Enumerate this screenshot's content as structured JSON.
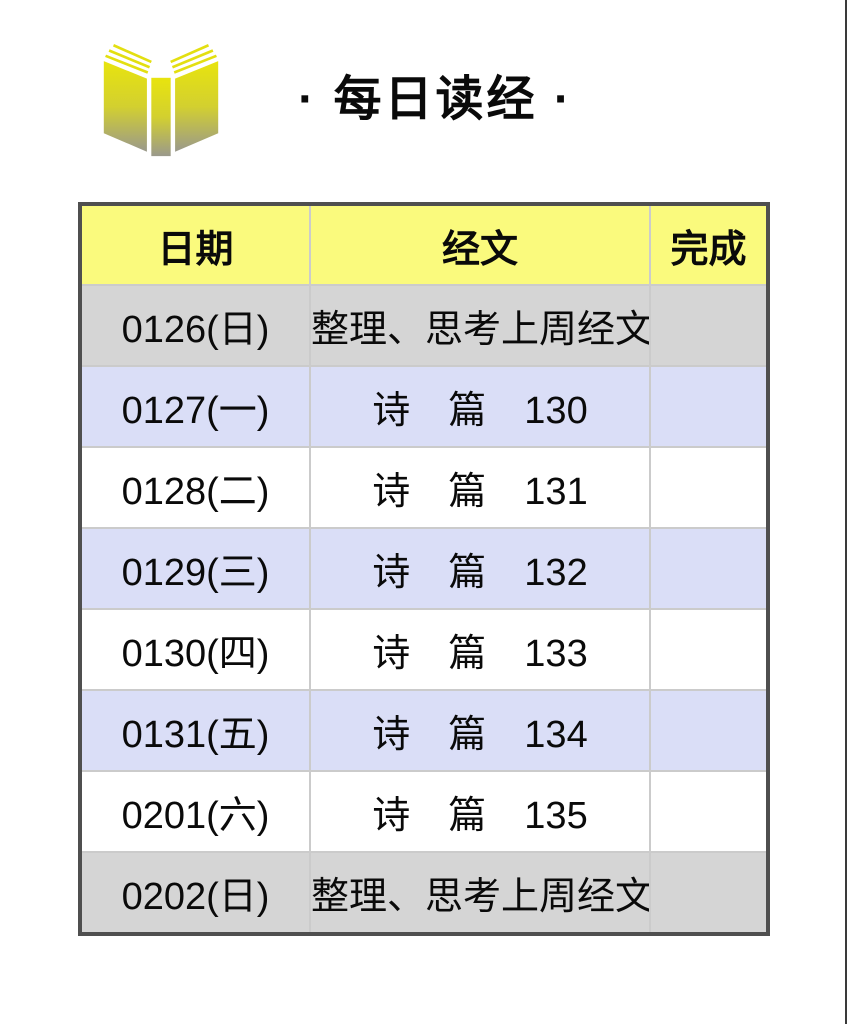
{
  "page": {
    "title": "· 每日读经 ·",
    "icon": "open-book-icon"
  },
  "colors": {
    "header_bg": "#fafa7d",
    "gray_row_bg": "#d5d5d5",
    "lavender_row_bg": "#dadef7",
    "white_row_bg": "#ffffff",
    "table_outer_border": "#4f4f4f",
    "cell_divider": "#cbcbcb",
    "book_yellow_top": "#e8e40e",
    "book_gray_bottom": "#9a998c",
    "text": "#0a0a0a"
  },
  "table": {
    "columns": [
      {
        "key": "date",
        "label": "日期"
      },
      {
        "key": "scripture",
        "label": "经文"
      },
      {
        "key": "done",
        "label": "完成"
      }
    ],
    "rows": [
      {
        "date": "0126(日)",
        "scripture": "整理、思考上周经文",
        "done": "",
        "style": "gray"
      },
      {
        "date": "0127(一)",
        "scripture": "诗　篇　130",
        "done": "",
        "style": "lavender"
      },
      {
        "date": "0128(二)",
        "scripture": "诗　篇　131",
        "done": "",
        "style": "white"
      },
      {
        "date": "0129(三)",
        "scripture": "诗　篇　132",
        "done": "",
        "style": "lavender"
      },
      {
        "date": "0130(四)",
        "scripture": "诗　篇　133",
        "done": "",
        "style": "white"
      },
      {
        "date": "0131(五)",
        "scripture": "诗　篇　134",
        "done": "",
        "style": "lavender"
      },
      {
        "date": "0201(六)",
        "scripture": "诗　篇　135",
        "done": "",
        "style": "white"
      },
      {
        "date": "0202(日)",
        "scripture": "整理、思考上周经文",
        "done": "",
        "style": "gray"
      }
    ]
  }
}
